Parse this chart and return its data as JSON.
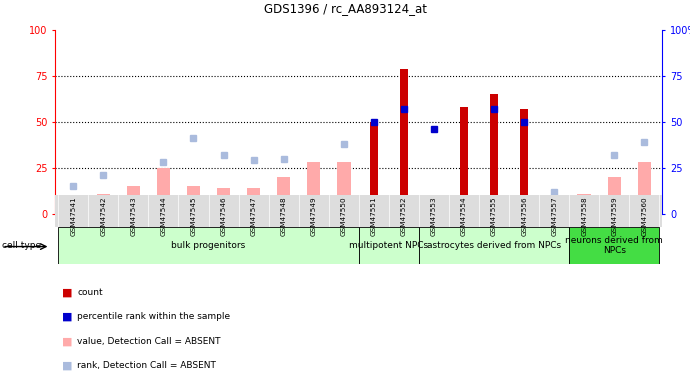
{
  "title": "GDS1396 / rc_AA893124_at",
  "samples": [
    "GSM47541",
    "GSM47542",
    "GSM47543",
    "GSM47544",
    "GSM47545",
    "GSM47546",
    "GSM47547",
    "GSM47548",
    "GSM47549",
    "GSM47550",
    "GSM47551",
    "GSM47552",
    "GSM47553",
    "GSM47554",
    "GSM47555",
    "GSM47556",
    "GSM47557",
    "GSM47558",
    "GSM47559",
    "GSM47560"
  ],
  "count_present": [
    null,
    null,
    null,
    null,
    null,
    null,
    null,
    null,
    null,
    null,
    50,
    79,
    null,
    58,
    65,
    57,
    null,
    null,
    null,
    null
  ],
  "count_absent": [
    7,
    11,
    15,
    25,
    15,
    14,
    14,
    20,
    28,
    28,
    null,
    null,
    null,
    null,
    null,
    null,
    5,
    11,
    20,
    28
  ],
  "rank_present": [
    null,
    null,
    null,
    null,
    null,
    null,
    null,
    null,
    null,
    null,
    50,
    57,
    46,
    null,
    57,
    50,
    null,
    null,
    null,
    null
  ],
  "rank_absent": [
    15,
    21,
    null,
    28,
    41,
    32,
    29,
    30,
    null,
    38,
    null,
    null,
    null,
    null,
    null,
    null,
    12,
    null,
    32,
    39
  ],
  "group_boundaries": [
    [
      0,
      9,
      "bulk progenitors",
      "#CCFFCC"
    ],
    [
      10,
      11,
      "multipotent NPCs",
      "#CCFFCC"
    ],
    [
      12,
      16,
      "astrocytes derived from NPCs",
      "#CCFFCC"
    ],
    [
      17,
      20,
      "neurons derived from\nNPCs",
      "#66EE66"
    ]
  ],
  "ylim": [
    0,
    100
  ],
  "red_color": "#CC0000",
  "pink_color": "#FFAAAA",
  "blue_color": "#0000CC",
  "lightblue_color": "#AABBDD"
}
